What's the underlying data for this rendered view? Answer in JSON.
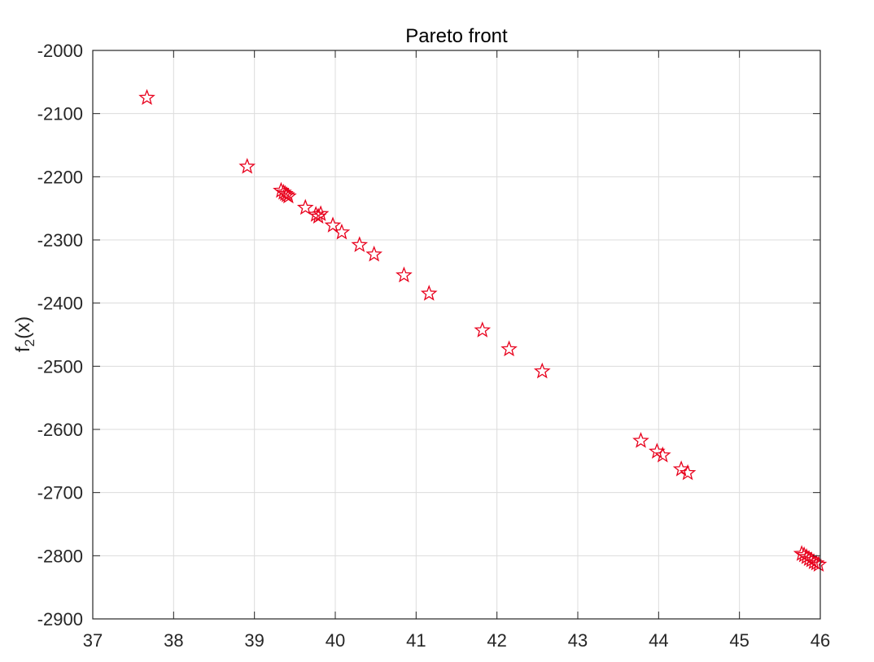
{
  "chart_data": {
    "type": "scatter",
    "title": "Pareto front",
    "xlabel": "",
    "ylabel": "f2(x)",
    "ylabel_main": "f",
    "ylabel_sub": "2",
    "ylabel_rest": "(x)",
    "xlim": [
      37,
      46
    ],
    "ylim": [
      -2900,
      -2000
    ],
    "grid": true,
    "marker": "pentagram",
    "marker_color": "#e8001c",
    "x_ticks": [
      37,
      38,
      39,
      40,
      41,
      42,
      43,
      44,
      45,
      46
    ],
    "x_tick_labels": [
      "37",
      "38",
      "39",
      "40",
      "41",
      "42",
      "43",
      "44",
      "45",
      "46"
    ],
    "y_ticks": [
      -2000,
      -2100,
      -2200,
      -2300,
      -2400,
      -2500,
      -2600,
      -2700,
      -2800,
      -2900
    ],
    "y_tick_labels": [
      "-2000",
      "-2100",
      "-2200",
      "-2300",
      "-2400",
      "-2500",
      "-2600",
      "-2700",
      "-2800",
      "-2900"
    ],
    "points": [
      [
        37.67,
        -2075
      ],
      [
        38.91,
        -2184
      ],
      [
        39.33,
        -2222
      ],
      [
        39.36,
        -2225
      ],
      [
        39.38,
        -2227
      ],
      [
        39.4,
        -2229
      ],
      [
        39.42,
        -2231
      ],
      [
        39.63,
        -2249
      ],
      [
        39.76,
        -2260
      ],
      [
        39.79,
        -2263
      ],
      [
        39.82,
        -2259
      ],
      [
        39.97,
        -2277
      ],
      [
        40.08,
        -2288
      ],
      [
        40.3,
        -2308
      ],
      [
        40.48,
        -2323
      ],
      [
        40.85,
        -2356
      ],
      [
        41.16,
        -2385
      ],
      [
        41.82,
        -2443
      ],
      [
        42.15,
        -2473
      ],
      [
        42.56,
        -2508
      ],
      [
        43.78,
        -2618
      ],
      [
        43.98,
        -2635
      ],
      [
        44.05,
        -2641
      ],
      [
        44.28,
        -2663
      ],
      [
        44.36,
        -2669
      ],
      [
        45.77,
        -2797
      ],
      [
        45.8,
        -2799
      ],
      [
        45.83,
        -2802
      ],
      [
        45.86,
        -2805
      ],
      [
        45.89,
        -2807
      ],
      [
        45.92,
        -2810
      ],
      [
        45.95,
        -2812
      ],
      [
        45.98,
        -2814
      ]
    ]
  }
}
